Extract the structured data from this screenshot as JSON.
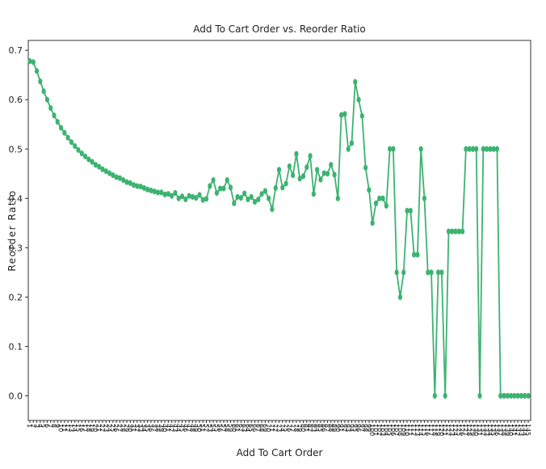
{
  "chart_data": {
    "type": "line",
    "title": "Add To Cart Order vs. Reorder Ratio",
    "x_label": "Add To Cart Order",
    "y_label": "Reorder Ratio",
    "categories": [
      1,
      2,
      3,
      4,
      5,
      6,
      7,
      8,
      9,
      10,
      11,
      12,
      13,
      14,
      15,
      16,
      17,
      18,
      19,
      20,
      21,
      22,
      23,
      24,
      25,
      26,
      27,
      28,
      29,
      30,
      31,
      32,
      33,
      34,
      35,
      36,
      37,
      38,
      39,
      40,
      41,
      42,
      43,
      44,
      45,
      46,
      47,
      48,
      49,
      50,
      51,
      52,
      53,
      54,
      55,
      56,
      57,
      58,
      59,
      60,
      61,
      62,
      63,
      64,
      65,
      66,
      67,
      68,
      69,
      70,
      71,
      72,
      73,
      74,
      75,
      76,
      77,
      78,
      79,
      80,
      81,
      82,
      83,
      84,
      85,
      86,
      87,
      88,
      89,
      90,
      91,
      92,
      93,
      94,
      95,
      96,
      97,
      98,
      99,
      100,
      101,
      102,
      103,
      104,
      105,
      106,
      107,
      108,
      109,
      110,
      111,
      112,
      113,
      114,
      115,
      116,
      117,
      118,
      119,
      120,
      121,
      122,
      123,
      124,
      125,
      126,
      127,
      128,
      129,
      130,
      131,
      132,
      133,
      134,
      135,
      136,
      137,
      138,
      139,
      140,
      141,
      142,
      143,
      144,
      145
    ],
    "series": [
      {
        "name": "Reorder Ratio",
        "color": "#3cb371",
        "values": [
          0.678,
          0.676,
          0.658,
          0.637,
          0.617,
          0.6,
          0.583,
          0.568,
          0.555,
          0.543,
          0.533,
          0.523,
          0.514,
          0.506,
          0.498,
          0.491,
          0.485,
          0.479,
          0.474,
          0.468,
          0.464,
          0.459,
          0.455,
          0.451,
          0.447,
          0.443,
          0.441,
          0.437,
          0.433,
          0.431,
          0.427,
          0.425,
          0.424,
          0.421,
          0.418,
          0.416,
          0.414,
          0.412,
          0.412,
          0.408,
          0.409,
          0.405,
          0.411,
          0.4,
          0.404,
          0.398,
          0.405,
          0.403,
          0.401,
          0.407,
          0.397,
          0.399,
          0.425,
          0.437,
          0.411,
          0.42,
          0.42,
          0.437,
          0.422,
          0.39,
          0.403,
          0.401,
          0.41,
          0.398,
          0.403,
          0.393,
          0.398,
          0.409,
          0.415,
          0.4,
          0.378,
          0.421,
          0.458,
          0.422,
          0.43,
          0.465,
          0.447,
          0.49,
          0.44,
          0.445,
          0.463,
          0.486,
          0.409,
          0.458,
          0.438,
          0.451,
          0.45,
          0.468,
          0.448,
          0.4,
          0.569,
          0.571,
          0.5,
          0.512,
          0.636,
          0.6,
          0.567,
          0.462,
          0.417,
          0.35,
          0.39,
          0.4,
          0.4,
          0.385,
          0.5,
          0.5,
          0.25,
          0.2,
          0.25,
          0.375,
          0.375,
          0.286,
          0.286,
          0.5,
          0.4,
          0.25,
          0.25,
          0.0,
          0.25,
          0.25,
          0.0,
          0.333,
          0.333,
          0.333,
          0.333,
          0.333,
          0.5,
          0.5,
          0.5,
          0.5,
          0.0,
          0.5,
          0.5,
          0.5,
          0.5,
          0.5,
          0.0,
          0.0,
          0.0,
          0.0,
          0.0,
          0.0,
          0.0,
          0.0,
          0.0
        ]
      }
    ],
    "ylim": [
      -0.05,
      0.72
    ],
    "yticks": [
      {
        "value": 0,
        "label": "0.0"
      },
      0.1,
      0.2,
      0.3,
      0.4,
      0.5,
      0.6,
      0.7
    ]
  }
}
